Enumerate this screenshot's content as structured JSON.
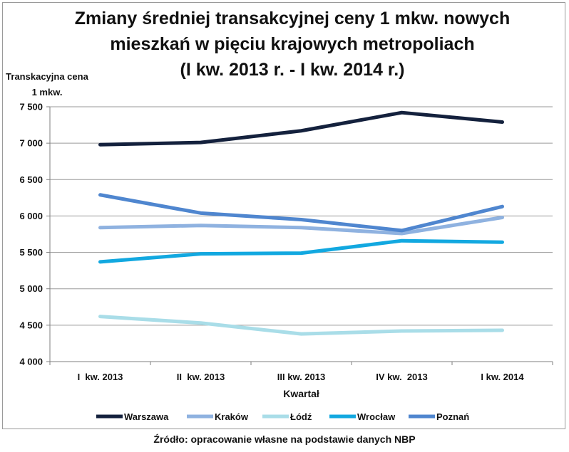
{
  "chart_data": {
    "type": "line",
    "title_lines": [
      "Zmiany średniej transakcyjnej ceny 1 mkw. nowych",
      "mieszkań w pięciu krajowych metropoliach",
      "(I kw. 2013 r. - I kw. 2014 r.)"
    ],
    "ylabel_lines": [
      "Transkacyjna cena",
      "1 mkw."
    ],
    "xlabel": "Kwartał",
    "categories": [
      "I  kw. 2013",
      "II  kw. 2013",
      "III kw. 2013",
      "IV kw.  2013",
      "I kw. 2014"
    ],
    "ylim": [
      4000,
      7500
    ],
    "yticks": [
      4000,
      4500,
      5000,
      5500,
      6000,
      6500,
      7000,
      7500
    ],
    "ytick_labels": [
      "4 000",
      "4 500",
      "5 000",
      "5 500",
      "6 000",
      "6 500",
      "7 000",
      "7 500"
    ],
    "grid": true,
    "legend_position": "bottom",
    "series": [
      {
        "name": "Warszawa",
        "color": "#14213d",
        "values": [
          6980,
          7010,
          7170,
          7420,
          7290
        ]
      },
      {
        "name": "Kraków",
        "color": "#8fb2e0",
        "values": [
          5840,
          5870,
          5840,
          5760,
          5980
        ]
      },
      {
        "name": "Łódź",
        "color": "#a9dde8",
        "values": [
          4620,
          4530,
          4380,
          4420,
          4430
        ]
      },
      {
        "name": "Wrocław",
        "color": "#12a8e0",
        "values": [
          5370,
          5480,
          5490,
          5660,
          5640
        ]
      },
      {
        "name": "Poznań",
        "color": "#4f86cf",
        "values": [
          6290,
          6040,
          5950,
          5800,
          6130
        ]
      }
    ]
  },
  "source_note": "Źródło: opracowanie własne na podstawie danych NBP"
}
